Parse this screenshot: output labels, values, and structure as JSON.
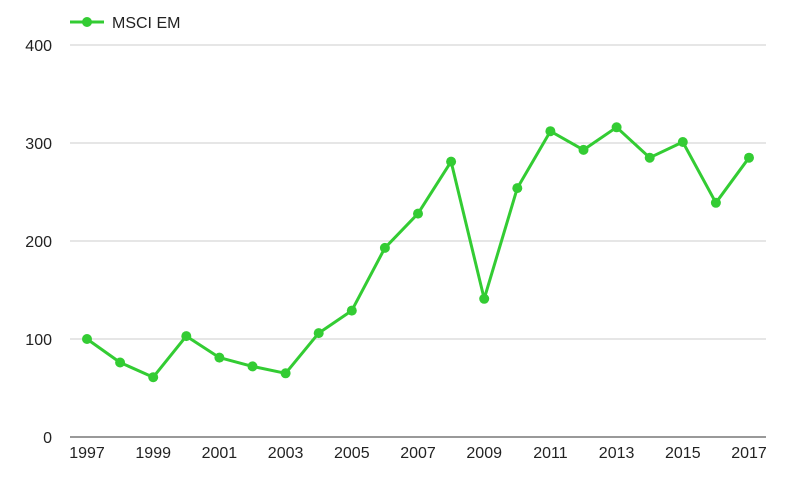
{
  "chart_data": {
    "type": "line",
    "title": "",
    "xlabel": "",
    "ylabel": "",
    "x": [
      1997,
      1998,
      1999,
      2000,
      2001,
      2002,
      2003,
      2004,
      2005,
      2006,
      2007,
      2008,
      2009,
      2010,
      2011,
      2012,
      2013,
      2014,
      2015,
      2016,
      2017
    ],
    "x_tick_labels": [
      "1997",
      "1999",
      "2001",
      "2003",
      "2005",
      "2007",
      "2009",
      "2011",
      "2013",
      "2015",
      "2017"
    ],
    "ylim": [
      0,
      400
    ],
    "y_ticks": [
      0,
      100,
      200,
      300,
      400
    ],
    "grid": true,
    "legend_position": "top-left",
    "series": [
      {
        "name": "MSCI EM",
        "color": "#33cc33",
        "values": [
          100,
          76,
          61,
          103,
          81,
          72,
          65,
          106,
          129,
          193,
          228,
          281,
          141,
          254,
          312,
          293,
          316,
          285,
          301,
          239,
          285
        ]
      }
    ]
  }
}
